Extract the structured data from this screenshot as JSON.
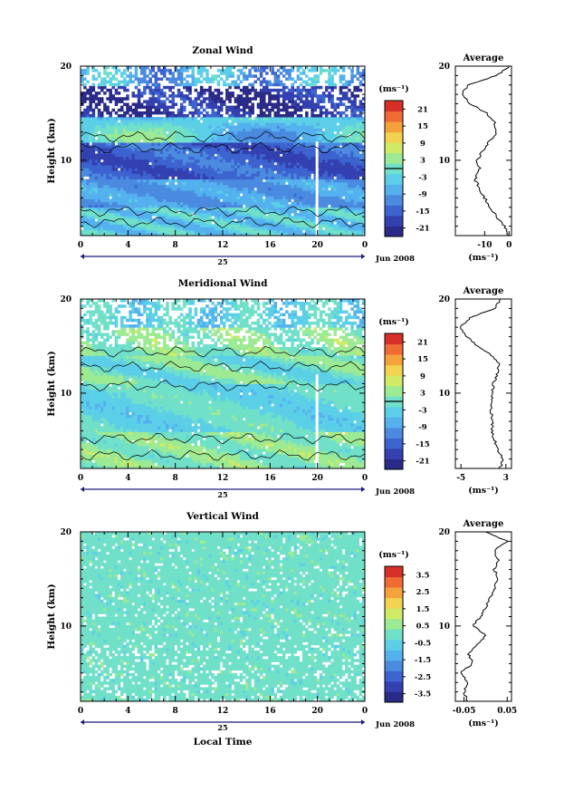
{
  "chart_data": [
    {
      "type": "heatmap",
      "title": "Zonal Wind",
      "xlabel": "",
      "ylabel": "Height (km)",
      "x_ticks": [
        "0",
        "4",
        "8",
        "12",
        "16",
        "20",
        "0"
      ],
      "xlim": [
        0,
        24
      ],
      "y_ticks": [
        "10",
        "20"
      ],
      "ylim": [
        2,
        20
      ],
      "date_mid": "25",
      "date_right": "Jun 2008",
      "colorbar": {
        "unit": "(ms⁻¹)",
        "ticks": [
          "21",
          "15",
          "9",
          "3",
          "-3",
          "-9",
          "-15",
          "-21"
        ],
        "range": [
          -24,
          24
        ],
        "contour_level": 0
      },
      "profile": {
        "title": "Average",
        "x_ticks": [
          "-10",
          "0"
        ],
        "xlim": [
          -22,
          1
        ],
        "xlabel": "(ms⁻¹)",
        "heights": [
          2,
          3,
          4,
          5,
          6,
          7,
          8,
          9,
          10,
          11,
          12,
          13,
          14,
          15,
          16,
          17,
          18,
          19,
          20
        ],
        "values": [
          0,
          -2,
          -5,
          -8,
          -10,
          -12,
          -14,
          -12,
          -13,
          -11,
          -8,
          -5,
          -6,
          -9,
          -16,
          -19,
          -17,
          -5,
          0
        ]
      }
    },
    {
      "type": "heatmap",
      "title": "Meridional Wind",
      "xlabel": "",
      "ylabel": "Height (km)",
      "x_ticks": [
        "0",
        "4",
        "8",
        "12",
        "16",
        "20",
        "0"
      ],
      "xlim": [
        0,
        24
      ],
      "y_ticks": [
        "10",
        "20"
      ],
      "ylim": [
        2,
        20
      ],
      "date_mid": "25",
      "date_right": "Jun 2008",
      "colorbar": {
        "unit": "(ms⁻¹)",
        "ticks": [
          "21",
          "15",
          "9",
          "3",
          "-3",
          "-9",
          "-15",
          "-21"
        ],
        "range": [
          -24,
          24
        ],
        "contour_level": 0
      },
      "profile": {
        "title": "Average",
        "x_ticks": [
          "-5",
          "3"
        ],
        "xlim": [
          -6,
          4
        ],
        "xlabel": "(ms⁻¹)",
        "heights": [
          2,
          3,
          4,
          5,
          6,
          7,
          8,
          9,
          10,
          11,
          12,
          13,
          14,
          15,
          16,
          17,
          18,
          19,
          20
        ],
        "values": [
          2,
          2.5,
          1.5,
          1,
          0.5,
          0.7,
          0.3,
          0.4,
          0.5,
          0.8,
          1.5,
          1.8,
          0.5,
          -2,
          -4,
          -5,
          -3.5,
          1,
          2
        ]
      }
    },
    {
      "type": "heatmap",
      "title": "Vertical Wind",
      "xlabel": "Local Time",
      "ylabel": "Height (km)",
      "x_ticks": [
        "0",
        "4",
        "8",
        "12",
        "16",
        "20",
        "0"
      ],
      "xlim": [
        0,
        24
      ],
      "y_ticks": [
        "10",
        "20"
      ],
      "ylim": [
        2,
        20
      ],
      "date_mid": "25",
      "date_right": "Jun 2008",
      "colorbar": {
        "unit": "(ms⁻¹)",
        "ticks": [
          "3.5",
          "2.5",
          "1.5",
          "0.5",
          "-0.5",
          "-1.5",
          "-2.5",
          "-3.5"
        ],
        "range": [
          -4,
          4
        ],
        "contour_level": null
      },
      "profile": {
        "title": "Average",
        "x_ticks": [
          "-0.05",
          "0.05"
        ],
        "xlim": [
          -0.07,
          0.06
        ],
        "xlabel": "(ms⁻¹)",
        "heights": [
          2,
          3,
          4,
          5,
          6,
          7,
          8,
          9,
          10,
          11,
          12,
          13,
          14,
          15,
          16,
          17,
          18,
          19,
          20
        ],
        "values": [
          -0.04,
          -0.05,
          -0.04,
          -0.06,
          -0.03,
          -0.04,
          -0.02,
          0.0,
          -0.03,
          -0.01,
          0.0,
          0.01,
          0.02,
          0.03,
          0.02,
          0.03,
          0.02,
          0.05,
          0.0
        ]
      }
    }
  ]
}
